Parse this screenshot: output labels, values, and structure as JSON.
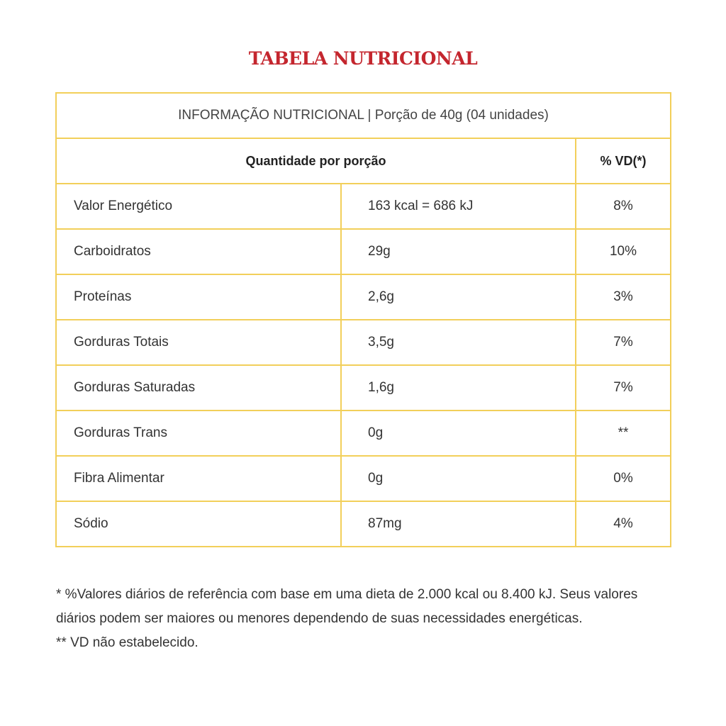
{
  "title": "TABELA NUTRICIONAL",
  "colors": {
    "title": "#c4262e",
    "border": "#f2cf5a"
  },
  "table": {
    "info": "INFORMAÇÃO NUTRICIONAL | Porção de 40g (04 unidades)",
    "header": {
      "quantity": "Quantidade por porção",
      "vd": "% VD(*)"
    },
    "rows": [
      {
        "nutrient": "Valor Energético",
        "amount": "163 kcal = 686 kJ",
        "vd": "8%"
      },
      {
        "nutrient": "Carboidratos",
        "amount": "29g",
        "vd": "10%"
      },
      {
        "nutrient": "Proteínas",
        "amount": "2,6g",
        "vd": "3%"
      },
      {
        "nutrient": "Gorduras Totais",
        "amount": "3,5g",
        "vd": "7%"
      },
      {
        "nutrient": "Gorduras Saturadas",
        "amount": "1,6g",
        "vd": "7%"
      },
      {
        "nutrient": "Gorduras Trans",
        "amount": "0g",
        "vd": "**"
      },
      {
        "nutrient": "Fibra Alimentar",
        "amount": "0g",
        "vd": "0%"
      },
      {
        "nutrient": "Sódio",
        "amount": "87mg",
        "vd": "4%"
      }
    ]
  },
  "footnotes": [
    "* %Valores diários de referência com base em uma dieta de 2.000 kcal ou 8.400 kJ. Seus valores diários podem ser maiores ou menores dependendo de suas necessidades energéticas.",
    "** VD não estabelecido."
  ]
}
